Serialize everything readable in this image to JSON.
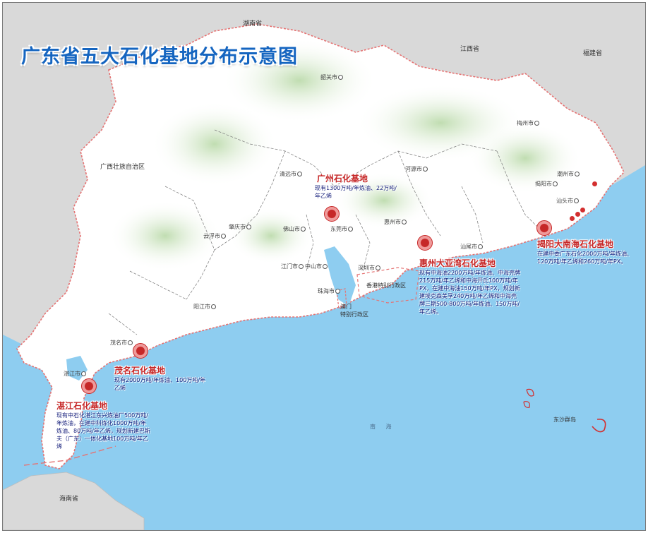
{
  "title": "广东省五大石化基地分布示意图",
  "regions": {
    "hunan": "湖南省",
    "jiangxi": "江西省",
    "fujian": "福建省",
    "guangxi": "广西壮族自治区",
    "hainan": "海南省"
  },
  "cities": {
    "shaoguan": "韶关市",
    "meizhou": "梅州市",
    "qingyuan": "清远市",
    "heyuan": "河源市",
    "chaozhou": "潮州市",
    "jieyang": "揭阳市",
    "shantou": "汕头市",
    "huizhou": "惠州市",
    "dongguan": "东莞市",
    "foshan": "佛山市",
    "zhaoqing": "肇庆市",
    "yunfu": "云浮市",
    "shanwei": "汕尾市",
    "jiangmen": "江门市",
    "zhongshan": "中山市",
    "shenzhen": "深圳市",
    "zhuhai": "珠海市",
    "yangjiang": "阳江市",
    "maoming": "茂名市",
    "zhanjiang": "湛江市"
  },
  "special_regions": {
    "hongkong": "香港特别行政区",
    "macau_line1": "澳门",
    "macau_line2": "特别行政区"
  },
  "islands": {
    "dongsha": "东沙群岛"
  },
  "sea": {
    "nanhai": "南 海"
  },
  "bases": {
    "guangzhou": {
      "name": "广州石化基地",
      "desc": "现有1300万吨/年炼油、22万吨/年乙烯"
    },
    "huizhou": {
      "name": "惠州大亚湾石化基地",
      "desc": "现有中海油2200万吨/年炼油、中海壳牌215万吨/年乙烯和中海开氏100万吨/年PX，在建中海油150万吨/年PX，规划新建埃克森美孚240万吨/年乙烯和中海壳牌三期500-800万吨/年炼油、150万吨/年乙烯。"
    },
    "jieyang": {
      "name": "揭阳大南海石化基地",
      "desc": "在建中委广东石化2000万吨/年炼油、120万吨/年乙烯和260万吨/年PX。"
    },
    "maoming": {
      "name": "茂名石化基地",
      "desc": "现有2000万吨/年炼油、100万吨/年乙烯"
    },
    "zhanjiang": {
      "name": "湛江石化基地",
      "desc": "现有中石化湛江东兴炼油厂500万吨/年炼油，在建中科炼化1000万吨/年炼油、80万吨/年乙烯，规划新建巴斯夫（广东）一体化基地100万吨/年乙烯"
    }
  },
  "colors": {
    "sea": "#8ecdf0",
    "land": "#ffffff",
    "outside": "#d9d9d9",
    "border": "#e57373",
    "title": "#1565c0",
    "base_name": "#c62828",
    "base_desc": "#1a237e"
  }
}
